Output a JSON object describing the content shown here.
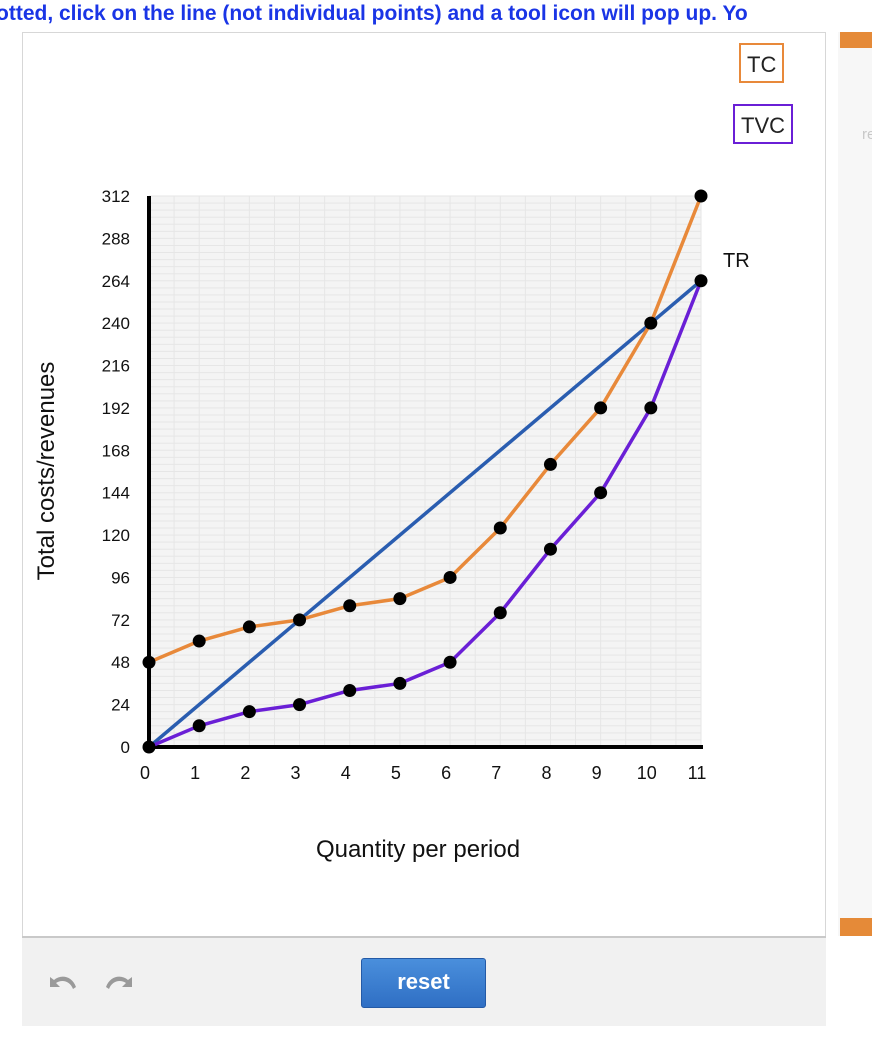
{
  "instruction": "otted, click on the line (not individual points) and a tool icon will pop up. Yo",
  "side_panel_text": "re",
  "tools": {
    "tc_label": "TC",
    "tvc_label": "TVC"
  },
  "reset_label": "reset",
  "icons": {
    "undo": "undo-icon",
    "redo": "redo-icon"
  },
  "colors": {
    "tc": "#e8893a",
    "tvc": "#6a1fd6",
    "tr": "#2a5db0",
    "reset": "#3a7bd5",
    "instruction": "#1a35e6"
  },
  "chart_data": {
    "type": "line",
    "xlabel": "Quantity per period",
    "ylabel": "Total costs/revenues",
    "xlim": [
      0,
      11
    ],
    "ylim": [
      0,
      312
    ],
    "x_ticks": [
      0,
      1,
      2,
      3,
      4,
      5,
      6,
      7,
      8,
      9,
      10,
      11
    ],
    "y_ticks": [
      0,
      24,
      48,
      72,
      96,
      120,
      144,
      168,
      192,
      216,
      240,
      264,
      288,
      312
    ],
    "grid": true,
    "series": [
      {
        "name": "TC",
        "color": "#e8893a",
        "markers": true,
        "x": [
          0,
          1,
          2,
          3,
          4,
          5,
          6,
          7,
          8,
          9,
          10,
          11
        ],
        "y": [
          48,
          60,
          68,
          72,
          80,
          84,
          96,
          124,
          160,
          192,
          240,
          312
        ]
      },
      {
        "name": "TVC",
        "color": "#6a1fd6",
        "markers": true,
        "x": [
          0,
          1,
          2,
          3,
          4,
          5,
          6,
          7,
          8,
          9,
          10,
          11
        ],
        "y": [
          0,
          12,
          20,
          24,
          32,
          36,
          48,
          76,
          112,
          144,
          192,
          264
        ]
      },
      {
        "name": "TR",
        "color": "#2a5db0",
        "markers": false,
        "x": [
          0,
          11
        ],
        "y": [
          0,
          264
        ]
      }
    ]
  }
}
